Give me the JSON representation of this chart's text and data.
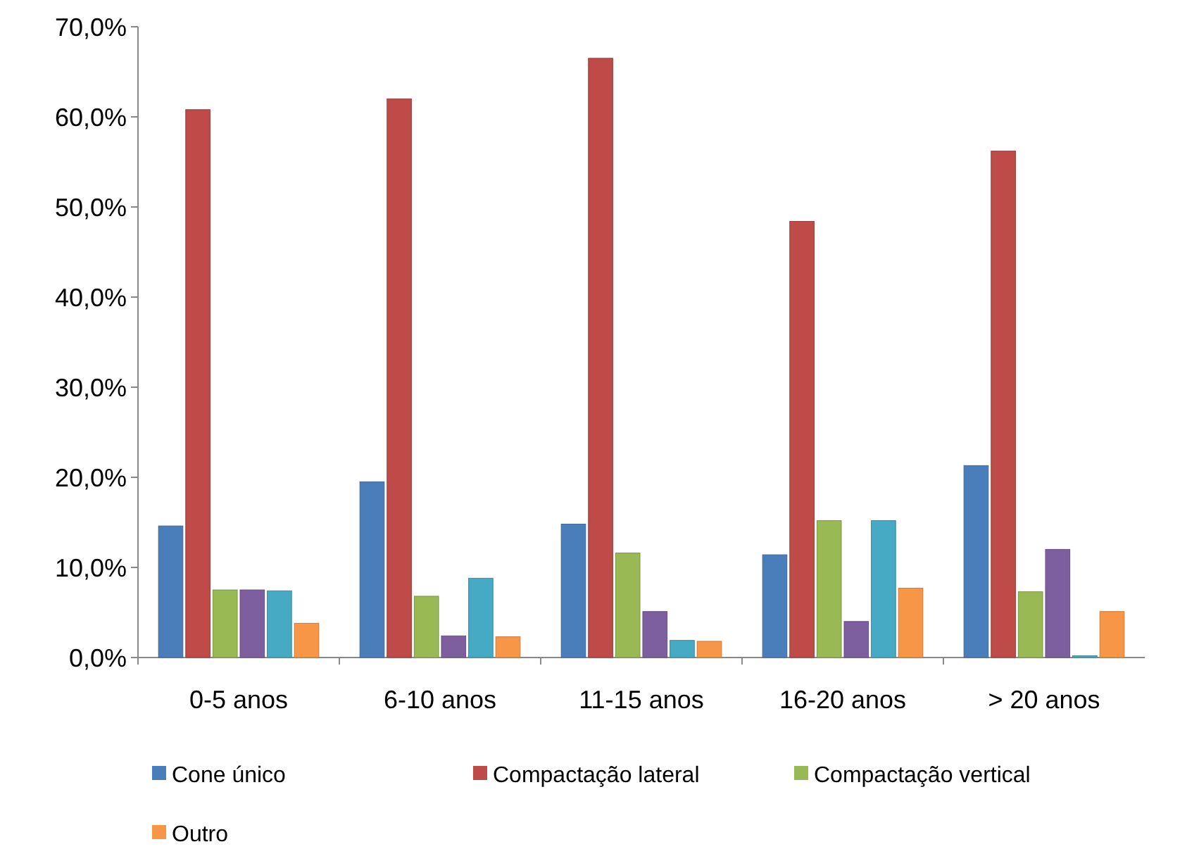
{
  "chart_data": {
    "type": "bar",
    "categories": [
      "0-5 anos",
      "6-10 anos",
      "11-15 anos",
      "16-20 anos",
      "> 20 anos"
    ],
    "series": [
      {
        "name": "Cone único",
        "color": "#4a7ebb",
        "values": [
          14.6,
          19.5,
          14.8,
          11.4,
          21.3
        ]
      },
      {
        "name": "Compactação lateral",
        "color": "#be4b48",
        "values": [
          60.8,
          62.0,
          66.5,
          48.4,
          56.2
        ]
      },
      {
        "name": "Compactação vertical",
        "color": "#98b954",
        "values": [
          7.5,
          6.8,
          11.6,
          15.2,
          7.3
        ]
      },
      {
        "color": "#7d5fa0",
        "values": [
          7.5,
          2.4,
          5.1,
          4.0,
          12.0
        ]
      },
      {
        "color": "#46aac5",
        "values": [
          7.4,
          8.8,
          1.9,
          15.2,
          0.2
        ]
      },
      {
        "name": "Outro",
        "color": "#f79646",
        "values": [
          3.8,
          2.3,
          1.8,
          7.7,
          5.1
        ]
      }
    ],
    "ylim": [
      0,
      70
    ],
    "yticks": [
      {
        "value": 0,
        "label": "0,0%"
      },
      {
        "value": 10,
        "label": "10,0%"
      },
      {
        "value": 20,
        "label": "20,0%"
      },
      {
        "value": 30,
        "label": "30,0%"
      },
      {
        "value": 40,
        "label": "40,0%"
      },
      {
        "value": 50,
        "label": "50,0%"
      },
      {
        "value": 60,
        "label": "60,0%"
      },
      {
        "value": 70,
        "label": "70,0%"
      }
    ],
    "legend": "bottom"
  }
}
